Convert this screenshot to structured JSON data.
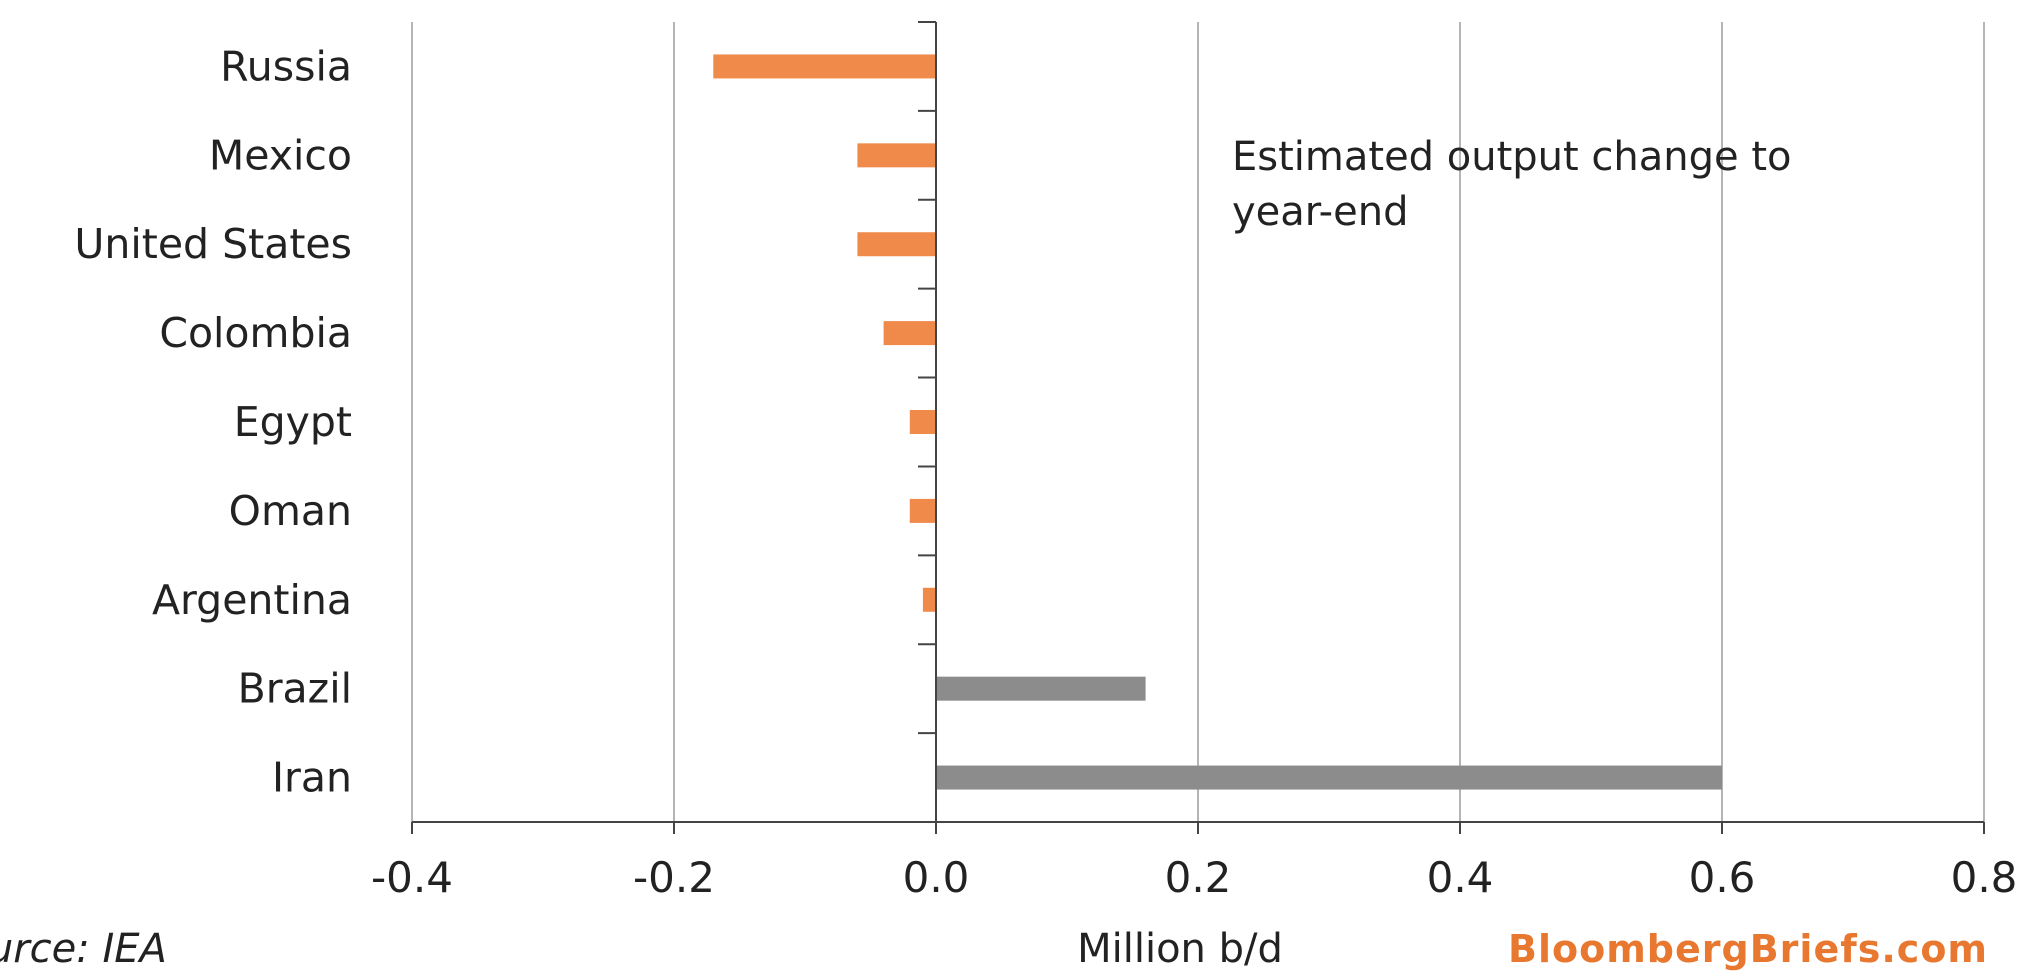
{
  "chart_data": {
    "type": "bar",
    "orientation": "horizontal",
    "categories": [
      "Russia",
      "Mexico",
      "United States",
      "Colombia",
      "Egypt",
      "Oman",
      "Argentina",
      "Brazil",
      "Iran"
    ],
    "values": [
      -0.17,
      -0.06,
      -0.06,
      -0.04,
      -0.02,
      -0.02,
      -0.01,
      0.16,
      0.6
    ],
    "colors": {
      "negative": "#f08a4b",
      "positive": "#8c8c8c",
      "grid": "#b5b5b5",
      "axis": "#444444"
    },
    "xlim": [
      -0.4,
      0.8
    ],
    "xticks": [
      "-0.4",
      "-0.2",
      "0.0",
      "0.2",
      "0.4",
      "0.6",
      "0.8"
    ],
    "xlabel": "Million b/d",
    "grid": "vertical",
    "annotation": [
      "Estimated output change to",
      "year-end"
    ],
    "source": "Source: IEA",
    "brand": "BloombergBriefs.com"
  }
}
